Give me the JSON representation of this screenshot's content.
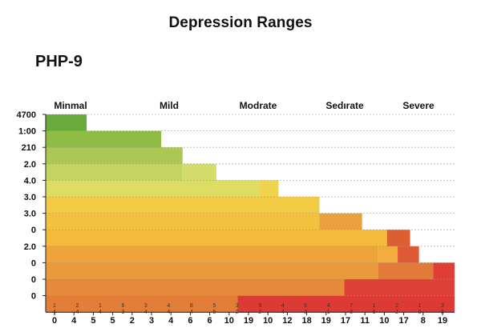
{
  "title": "Depression Ranges",
  "subtitle": "PHP-9",
  "chart_data": {
    "type": "bar",
    "orientation": "horizontal-stepped",
    "title": "Depression Ranges",
    "subtitle": "PHP-9",
    "severity_bands": [
      "Minmal",
      "Mild",
      "Modrate",
      "Sedırate",
      "Severe"
    ],
    "y_tick_labels": [
      "4700",
      "1:00",
      "210",
      "2.0",
      "4.0",
      "3.0",
      "3.0",
      "0",
      "2.0",
      "0",
      "0",
      "0"
    ],
    "x_tick_labels_top": [
      "1\n4",
      "2\n4",
      "1\n4",
      "6\n3",
      "3\n4",
      "4\n4",
      "8\n4",
      "5\n5",
      "3\n2",
      "3\n2",
      "4\n4",
      "6\n3",
      "4\n1",
      "7\n8",
      "1\n8",
      "2\n2",
      "1\n8",
      "3\n8"
    ],
    "x_tick_labels_bottom": [
      "0",
      "4",
      "5",
      "5",
      "2",
      "3",
      "4",
      "6",
      "6",
      "10",
      "19",
      "10",
      "12",
      "18",
      "19",
      "17",
      "11",
      "10",
      "17",
      "8",
      "19"
    ],
    "x_range": [
      0,
      23
    ],
    "grid": true,
    "grid_style": "dotted",
    "rows": [
      {
        "row": 3,
        "segments": [
          {
            "start": 0,
            "end": 2.3,
            "color": "#6bab3e"
          }
        ]
      },
      {
        "row": 4,
        "segments": [
          {
            "start": 0,
            "end": 6.5,
            "color": "#8fbc45"
          }
        ]
      },
      {
        "row": 5,
        "segments": [
          {
            "start": 0,
            "end": 7.7,
            "color": "#acc753"
          }
        ]
      },
      {
        "row": 6,
        "segments": [
          {
            "start": 0,
            "end": 7.7,
            "color": "#c4d461"
          },
          {
            "start": 7.7,
            "end": 9.6,
            "color": "#d4dd6c"
          }
        ]
      },
      {
        "row": 7,
        "segments": [
          {
            "start": 0,
            "end": 12.0,
            "color": "#dedd63"
          },
          {
            "start": 12.0,
            "end": 13.1,
            "color": "#f0d34e"
          }
        ]
      },
      {
        "row": 8,
        "segments": [
          {
            "start": 0,
            "end": 15.4,
            "color": "#f2cb45"
          }
        ]
      },
      {
        "row": 9,
        "segments": [
          {
            "start": 0,
            "end": 15.4,
            "color": "#f2c13d"
          },
          {
            "start": 15.4,
            "end": 17.8,
            "color": "#eba23e"
          }
        ]
      },
      {
        "row": 10,
        "segments": [
          {
            "start": 0,
            "end": 19.2,
            "color": "#f3bb39"
          },
          {
            "start": 19.2,
            "end": 20.5,
            "color": "#dc5e33"
          }
        ]
      },
      {
        "row": 11,
        "segments": [
          {
            "start": 0,
            "end": 18.7,
            "color": "#eda43b"
          },
          {
            "start": 18.7,
            "end": 19.8,
            "color": "#f2ad3d"
          },
          {
            "start": 19.8,
            "end": 21.0,
            "color": "#de5a35"
          }
        ]
      },
      {
        "row": 12,
        "segments": [
          {
            "start": 0,
            "end": 18.7,
            "color": "#e99a3a"
          },
          {
            "start": 18.7,
            "end": 21.8,
            "color": "#e27a3a"
          },
          {
            "start": 21.8,
            "end": 23.0,
            "color": "#de3e35"
          }
        ]
      },
      {
        "row": 13,
        "segments": [
          {
            "start": 0,
            "end": 16.8,
            "color": "#e48a3a"
          },
          {
            "start": 16.8,
            "end": 23.0,
            "color": "#dc4036"
          }
        ]
      },
      {
        "row": 14,
        "segments": [
          {
            "start": 0,
            "end": 10.8,
            "color": "#e27e38"
          },
          {
            "start": 10.8,
            "end": 23.0,
            "color": "#db3a35"
          }
        ]
      }
    ]
  }
}
